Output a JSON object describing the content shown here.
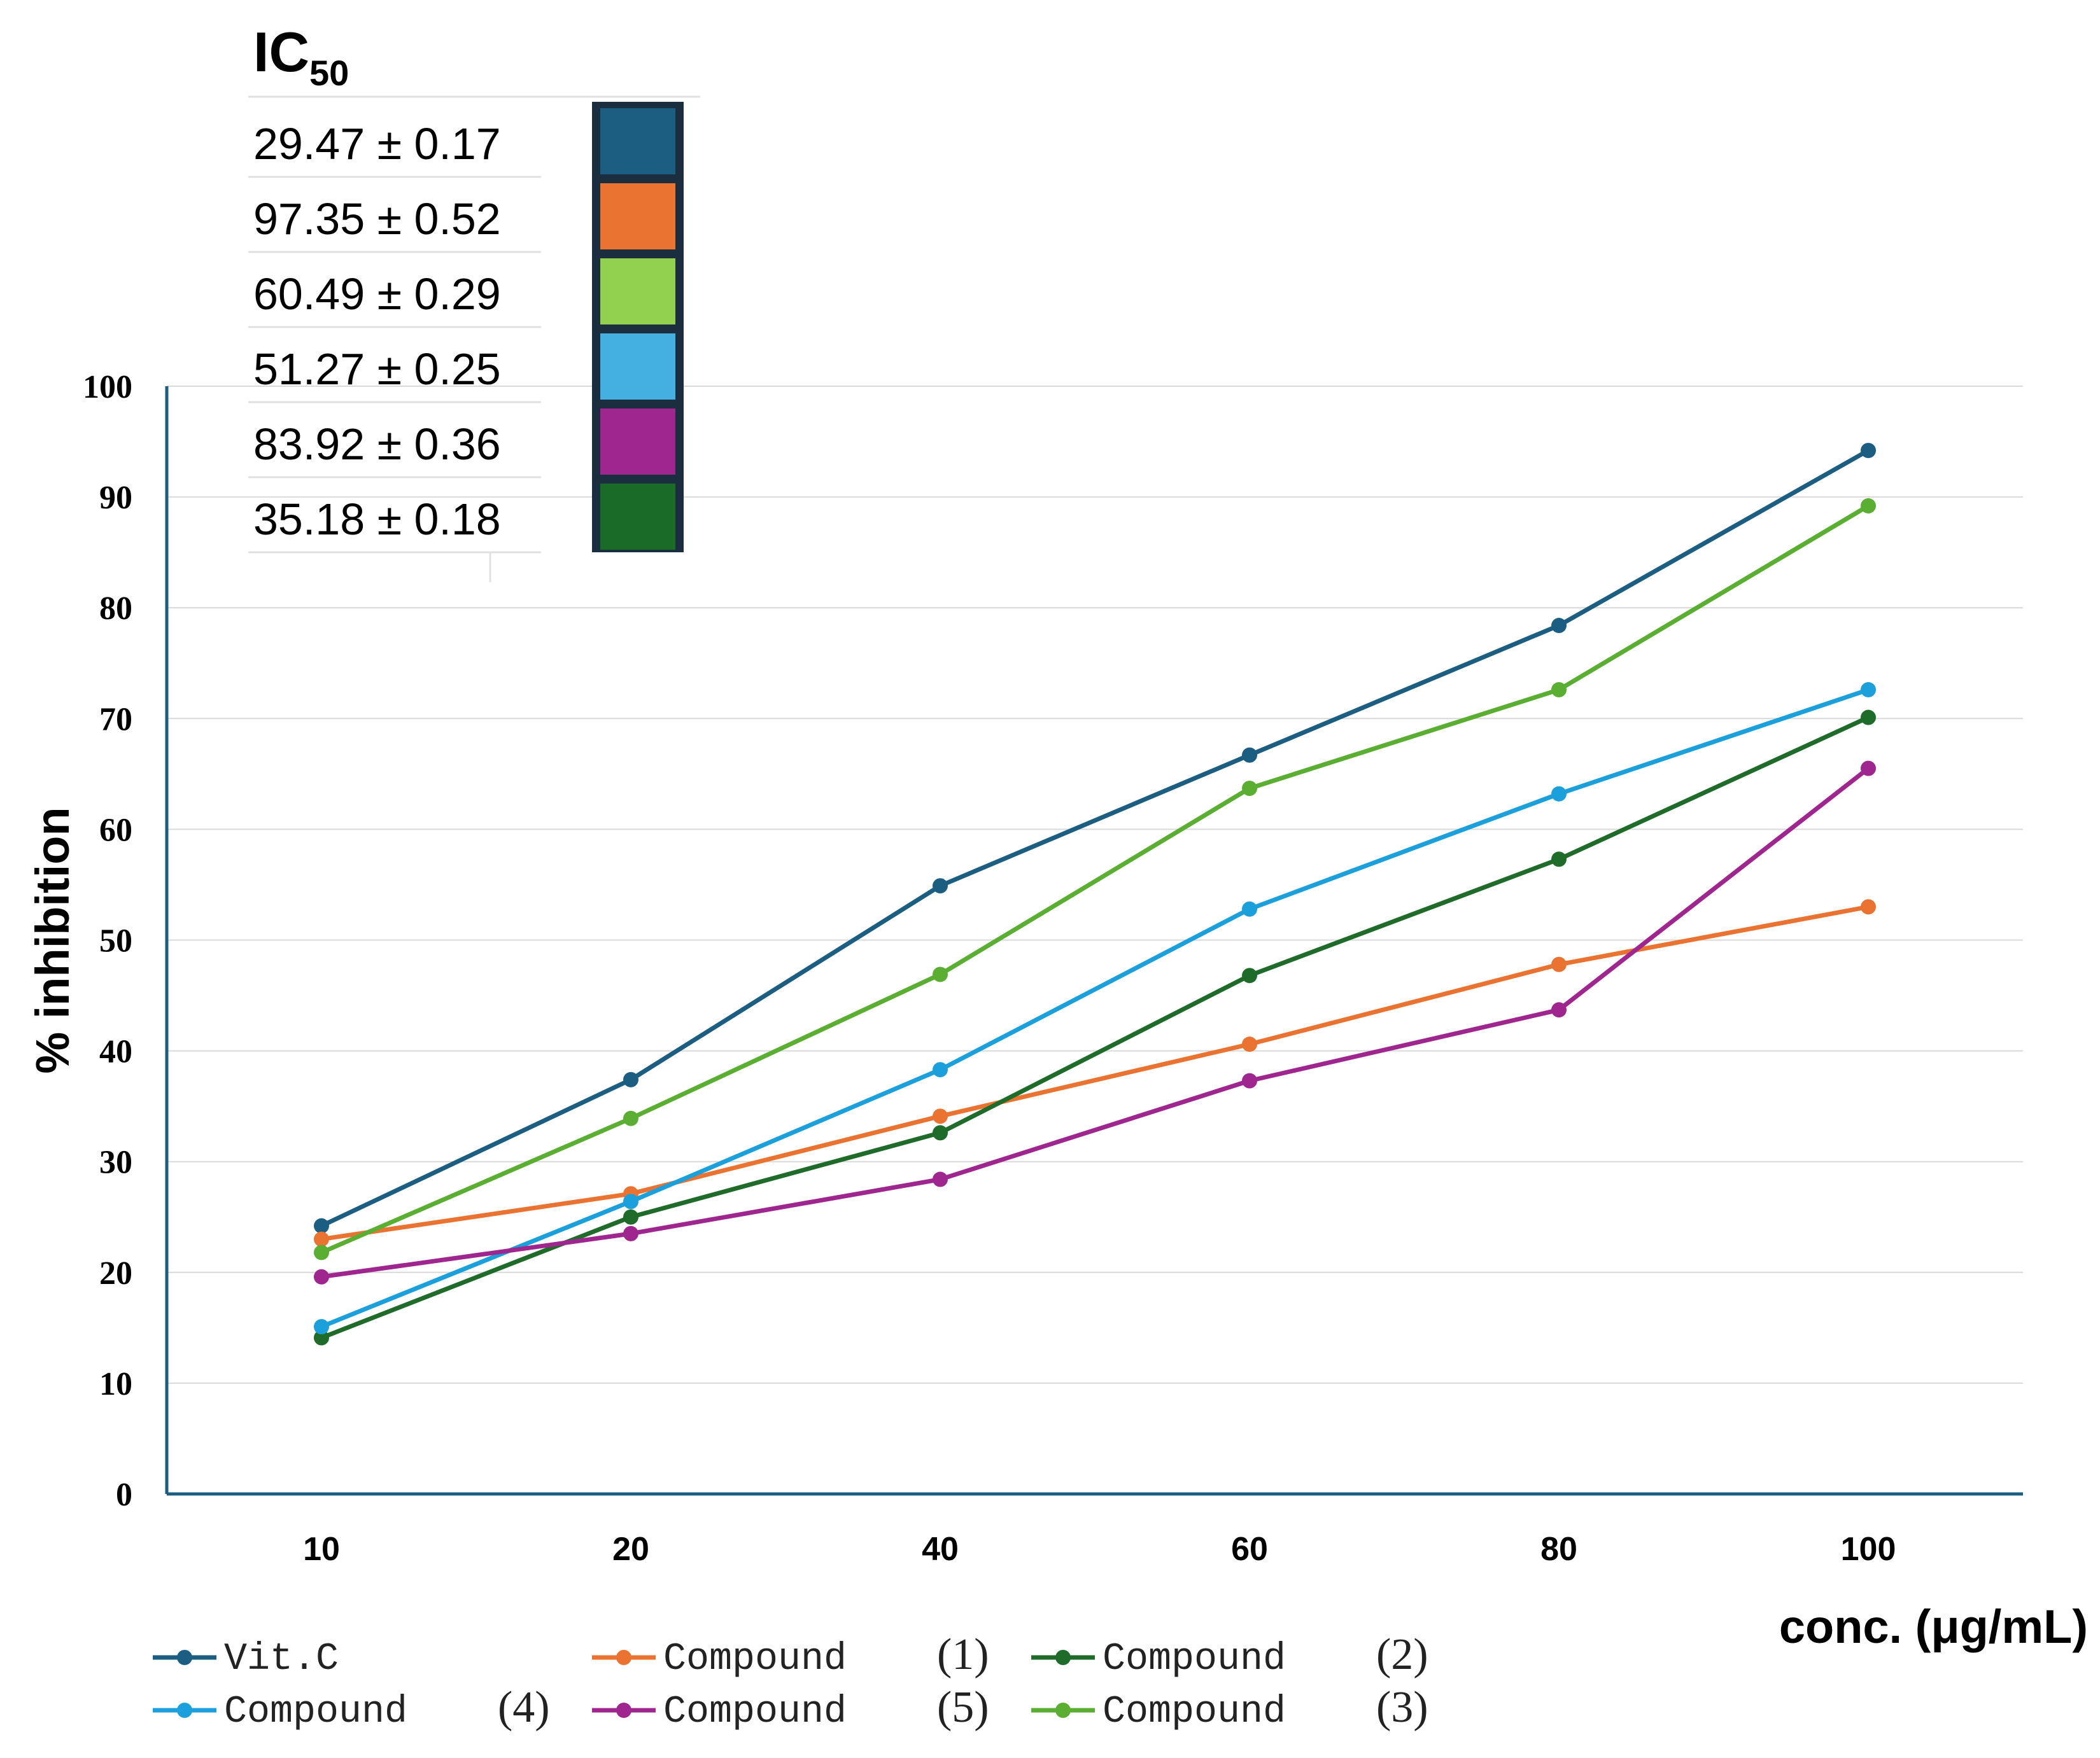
{
  "ic50_panel": {
    "title": "IC",
    "title_subscript": "50",
    "rows": [
      {
        "value": "29.47 ± 0.17",
        "color": "#1B5E82"
      },
      {
        "value": "97.35 ± 0.52",
        "color": "#EB7332"
      },
      {
        "value": "60.49 ± 0.29",
        "color": "#92D050"
      },
      {
        "value": "51.27 ± 0.25",
        "color": "#44B0E2"
      },
      {
        "value": "83.92 ± 0.36",
        "color": "#A0268F"
      },
      {
        "value": "35.18 ± 0.18",
        "color": "#1A6B28"
      }
    ]
  },
  "chart_data": {
    "type": "line",
    "title": "",
    "xlabel": "conc. (μg/mL)",
    "ylabel": "% inhibition",
    "categories": [
      "10",
      "20",
      "40",
      "60",
      "80",
      "100"
    ],
    "ylim": [
      0,
      100
    ],
    "yticks": [
      0,
      10,
      20,
      30,
      40,
      50,
      60,
      70,
      80,
      90,
      100
    ],
    "grid": "horizontal",
    "legend_position": "bottom",
    "series": [
      {
        "name": "Vit.C",
        "name_parts": [
          "Vit.C",
          ""
        ],
        "color": "#1B5E82",
        "values": [
          24.2,
          37.4,
          54.9,
          66.7,
          78.4,
          94.2
        ]
      },
      {
        "name": "Compound (1)",
        "name_parts": [
          "Compound",
          "(1)"
        ],
        "color": "#EB7332",
        "values": [
          23.0,
          27.1,
          34.1,
          40.6,
          47.8,
          53.0
        ]
      },
      {
        "name": "Compound (2)",
        "name_parts": [
          "Compound",
          "(2)"
        ],
        "color": "#1E6B2A",
        "values": [
          14.1,
          25.0,
          32.6,
          46.8,
          57.3,
          70.1
        ]
      },
      {
        "name": "Compound (4)",
        "name_parts": [
          "Compound",
          "(4)"
        ],
        "color": "#1CA0DC",
        "values": [
          15.1,
          26.4,
          38.3,
          52.8,
          63.2,
          72.6
        ]
      },
      {
        "name": "Compound (5)",
        "name_parts": [
          "Compound",
          "(5)"
        ],
        "color": "#A0268F",
        "values": [
          19.6,
          23.5,
          28.4,
          37.3,
          43.7,
          65.5
        ]
      },
      {
        "name": "Compound (3)",
        "name_parts": [
          "Compound",
          "(3)"
        ],
        "color": "#5AAE32",
        "values": [
          21.8,
          33.9,
          46.9,
          63.7,
          72.6,
          89.2
        ]
      }
    ]
  }
}
